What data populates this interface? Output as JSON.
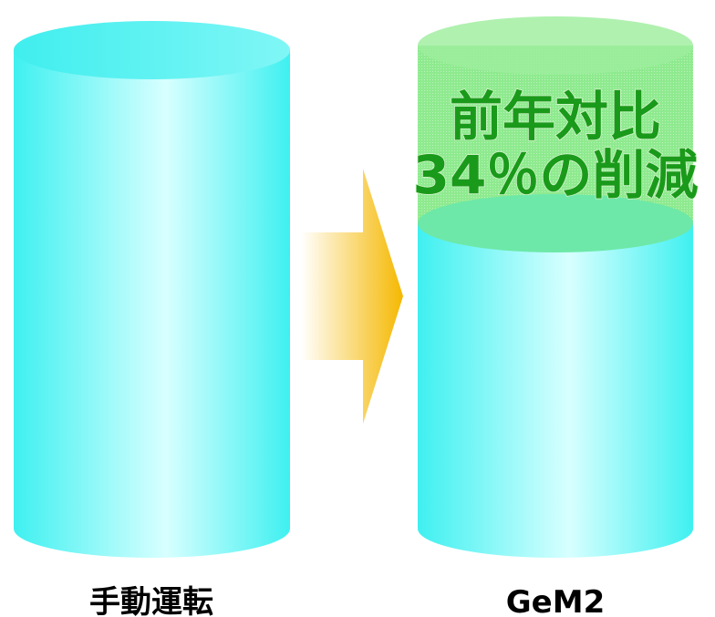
{
  "cylinders": [
    {
      "label": "手動運転"
    },
    {
      "label": "GeM2"
    }
  ],
  "annotation": {
    "lines": [
      "前年対比",
      "34％の削減"
    ]
  }
}
